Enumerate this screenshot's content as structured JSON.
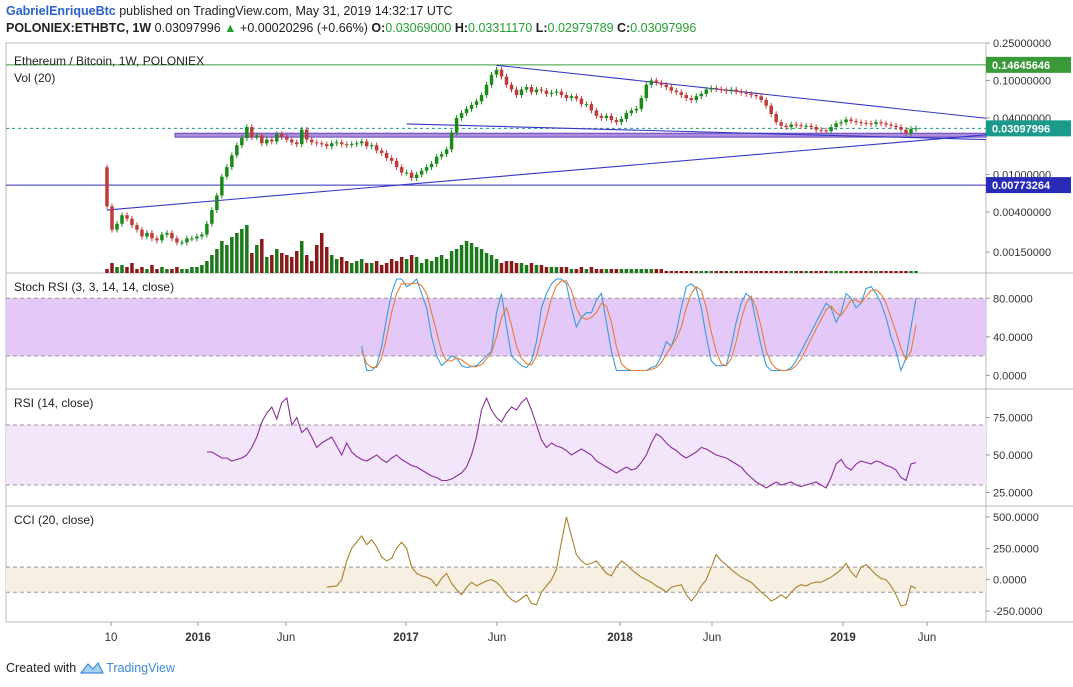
{
  "header": {
    "author": "GabrielEnriqueBtc",
    "published": " published on TradingView.com, May 31, 2019 14:32:17 UTC",
    "symbol": "POLONIEX:ETHBTC, 1W",
    "price": "0.03097996",
    "change": "+0.00020296 (+0.66%)",
    "o_label": "O:",
    "o_value": "0.03069000",
    "h_label": "H:",
    "h_value": "0.03311170",
    "l_label": "L:",
    "l_value": "0.02979789",
    "c_label": "C:",
    "c_value": "0.03097996"
  },
  "footer": {
    "created_with": "Created with",
    "brand": "TradingView"
  },
  "colors": {
    "up": "#1a8a1a",
    "down": "#c23b3b",
    "volume_up": "#1a7a1a",
    "volume_down": "#8a1a1a",
    "trendline": "#3535c8",
    "support_band": "#9a70d8",
    "green_line": "#3a9a3a",
    "stoch_k": "#3d9bd8",
    "stoch_d": "#e67e3a",
    "rsi": "#8a2c9a",
    "cci": "#a8822e",
    "stoch_band": "#e4c8f8",
    "rsi_band": "#f3e6fb",
    "cci_band": "#f6efe2"
  },
  "chart_data": [
    {
      "type": "candlestick",
      "title": "Ethereum / Bitcoin, 1W, POLONIEX",
      "scale": "log",
      "yaxis_ticks": [
        "0.25000000",
        "0.10000000",
        "0.04000000",
        "0.01000000",
        "0.00400000",
        "0.00150000"
      ],
      "ylim": [
        0.0009,
        0.25
      ],
      "x_ticks": [
        "10",
        "2016",
        "Jun",
        "2017",
        "Jun",
        "2018",
        "Jun",
        "2019",
        "Jun"
      ],
      "x_ticks_bold": [
        "2016",
        "2017",
        "2018",
        "2019"
      ],
      "last_price": "0.03097996",
      "markers": [
        {
          "label": "0.14645646",
          "value": 0.14645646,
          "color": "#3a9a3a"
        },
        {
          "label": "0.03097996",
          "value": 0.03097996,
          "color": "#1a9a8a"
        },
        {
          "label": "0.00773264",
          "value": 0.00773264,
          "color": "#2a2ab8"
        }
      ],
      "support_band": [
        0.025,
        0.0275
      ],
      "closes": [
        0.0046,
        0.0026,
        0.003,
        0.0037,
        0.0034,
        0.0029,
        0.0026,
        0.0022,
        0.0024,
        0.0021,
        0.002,
        0.0023,
        0.0024,
        0.0021,
        0.0019,
        0.0019,
        0.0021,
        0.0021,
        0.0022,
        0.0023,
        0.003,
        0.0042,
        0.006,
        0.0095,
        0.012,
        0.016,
        0.0205,
        0.0245,
        0.032,
        0.025,
        0.026,
        0.0215,
        0.0235,
        0.0225,
        0.027,
        0.025,
        0.0235,
        0.022,
        0.021,
        0.03,
        0.0235,
        0.022,
        0.0215,
        0.021,
        0.02,
        0.0215,
        0.022,
        0.021,
        0.0208,
        0.0212,
        0.0215,
        0.0225,
        0.02,
        0.0205,
        0.018,
        0.017,
        0.015,
        0.014,
        0.012,
        0.0105,
        0.0105,
        0.0092,
        0.01,
        0.011,
        0.012,
        0.013,
        0.0155,
        0.0165,
        0.0185,
        0.028,
        0.04,
        0.045,
        0.05,
        0.055,
        0.06,
        0.07,
        0.09,
        0.115,
        0.13,
        0.11,
        0.09,
        0.08,
        0.07,
        0.08,
        0.085,
        0.075,
        0.08,
        0.078,
        0.072,
        0.074,
        0.076,
        0.07,
        0.065,
        0.068,
        0.064,
        0.056,
        0.056,
        0.048,
        0.042,
        0.04,
        0.042,
        0.038,
        0.036,
        0.039,
        0.045,
        0.048,
        0.05,
        0.065,
        0.09,
        0.1,
        0.095,
        0.09,
        0.085,
        0.078,
        0.075,
        0.07,
        0.065,
        0.062,
        0.068,
        0.072,
        0.08,
        0.083,
        0.081,
        0.079,
        0.077,
        0.08,
        0.076,
        0.074,
        0.072,
        0.07,
        0.068,
        0.062,
        0.054,
        0.044,
        0.036,
        0.033,
        0.032,
        0.034,
        0.0335,
        0.033,
        0.033,
        0.032,
        0.03,
        0.0295,
        0.029,
        0.032,
        0.035,
        0.036,
        0.0385,
        0.037,
        0.036,
        0.0355,
        0.035,
        0.0345,
        0.036,
        0.035,
        0.034,
        0.033,
        0.032,
        0.03,
        0.0275,
        0.0306,
        0.031
      ]
    },
    {
      "type": "bar",
      "title": "Vol (20)",
      "values": [
        2,
        5,
        3,
        4,
        3,
        5,
        2,
        3,
        2,
        4,
        2,
        3,
        2,
        2,
        3,
        2,
        2,
        3,
        3,
        4,
        6,
        9,
        12,
        16,
        14,
        18,
        20,
        22,
        24,
        10,
        14,
        17,
        8,
        9,
        12,
        10,
        9,
        8,
        11,
        16,
        9,
        6,
        14,
        20,
        13,
        9,
        7,
        8,
        6,
        5,
        6,
        7,
        5,
        5,
        6,
        4,
        5,
        7,
        6,
        8,
        7,
        9,
        8,
        5,
        7,
        6,
        8,
        9,
        7,
        11,
        12,
        14,
        16,
        15,
        13,
        12,
        10,
        9,
        7,
        5,
        6,
        6,
        5,
        5,
        4,
        5,
        4,
        4,
        3,
        3,
        3,
        3,
        3,
        2,
        2,
        3,
        2,
        3,
        2,
        2,
        2,
        2,
        2,
        2,
        2,
        2,
        2,
        2,
        2,
        2,
        2,
        2,
        1,
        1,
        1,
        1,
        1,
        1,
        1,
        1,
        1,
        1,
        1,
        1,
        1,
        1,
        1,
        1,
        1,
        1,
        1,
        1,
        1,
        1,
        1,
        1,
        1,
        1,
        1,
        1,
        1,
        1,
        1,
        1,
        1,
        1,
        1,
        1,
        1,
        1,
        1,
        1,
        1,
        1,
        1,
        1,
        1,
        1,
        1,
        1,
        1,
        1,
        1
      ]
    },
    {
      "type": "line",
      "title": "Stoch RSI (3, 3, 14, 14, close)",
      "yaxis_ticks": [
        "80.0000",
        "40.0000",
        "0.0000"
      ],
      "ylim": [
        -8,
        100
      ],
      "band": [
        20,
        80
      ],
      "series": [
        {
          "name": "K",
          "values": [
            30,
            5,
            5,
            10,
            30,
            60,
            85,
            100,
            100,
            92,
            95,
            100,
            85,
            70,
            40,
            20,
            10,
            15,
            20,
            18,
            10,
            8,
            9,
            10,
            15,
            20,
            25,
            65,
            85,
            50,
            20,
            15,
            10,
            8,
            15,
            35,
            70,
            85,
            95,
            100,
            100,
            95,
            70,
            50,
            60,
            65,
            65,
            78,
            85,
            55,
            25,
            5,
            5,
            5,
            5,
            5,
            5,
            5,
            8,
            10,
            20,
            35,
            30,
            45,
            70,
            92,
            95,
            90,
            70,
            40,
            15,
            10,
            10,
            10,
            30,
            55,
            75,
            85,
            80,
            55,
            30,
            10,
            5,
            5,
            5,
            5,
            8,
            15,
            25,
            35,
            45,
            55,
            65,
            75,
            70,
            55,
            65,
            85,
            80,
            70,
            75,
            90,
            92,
            85,
            75,
            60,
            40,
            25,
            5,
            18,
            50,
            80
          ]
        },
        {
          "name": "D",
          "values": [
            25,
            12,
            8,
            8,
            18,
            40,
            65,
            85,
            95,
            95,
            95,
            96,
            93,
            85,
            65,
            45,
            25,
            15,
            15,
            18,
            16,
            12,
            9,
            9,
            11,
            17,
            23,
            40,
            60,
            70,
            52,
            30,
            18,
            12,
            11,
            20,
            40,
            60,
            80,
            93,
            98,
            98,
            88,
            70,
            60,
            58,
            60,
            65,
            75,
            72,
            55,
            30,
            12,
            7,
            5,
            5,
            5,
            5,
            6,
            8,
            13,
            22,
            30,
            38,
            50,
            70,
            85,
            92,
            88,
            70,
            45,
            25,
            12,
            10,
            17,
            35,
            58,
            75,
            82,
            70,
            50,
            25,
            13,
            7,
            5,
            5,
            6,
            10,
            17,
            27,
            38,
            48,
            58,
            68,
            72,
            65,
            62,
            70,
            78,
            78,
            75,
            82,
            88,
            89,
            84,
            75,
            60,
            45,
            28,
            16,
            25,
            52
          ]
        }
      ]
    },
    {
      "type": "line",
      "title": "RSI (14, close)",
      "yaxis_ticks": [
        "75.0000",
        "50.0000",
        "25.0000"
      ],
      "ylim": [
        20,
        90
      ],
      "band": [
        30,
        70
      ],
      "series": [
        {
          "name": "RSI",
          "values": [
            52,
            52,
            50,
            48,
            48,
            46,
            47,
            48,
            50,
            55,
            62,
            72,
            78,
            82,
            74,
            85,
            88,
            70,
            75,
            65,
            68,
            62,
            55,
            58,
            60,
            62,
            56,
            50,
            58,
            52,
            49,
            47,
            46,
            48,
            50,
            47,
            45,
            48,
            50,
            47,
            45,
            43,
            42,
            40,
            38,
            36,
            35,
            33,
            33,
            34,
            36,
            38,
            42,
            50,
            62,
            80,
            88,
            80,
            75,
            72,
            78,
            82,
            80,
            85,
            88,
            80,
            70,
            60,
            55,
            58,
            56,
            55,
            53,
            50,
            52,
            54,
            52,
            50,
            46,
            44,
            42,
            40,
            38,
            40,
            42,
            40,
            41,
            45,
            50,
            58,
            64,
            62,
            58,
            55,
            53,
            50,
            48,
            50,
            52,
            55,
            54,
            52,
            50,
            49,
            48,
            46,
            44,
            42,
            38,
            35,
            32,
            30,
            28,
            30,
            32,
            30,
            31,
            32,
            30,
            29,
            30,
            31,
            32,
            30,
            28,
            35,
            44,
            47,
            42,
            40,
            44,
            46,
            45,
            44,
            46,
            45,
            43,
            42,
            40,
            35,
            33,
            44,
            45
          ]
        }
      ]
    },
    {
      "type": "line",
      "title": "CCI (20, close)",
      "yaxis_ticks": [
        "500.0000",
        "250.0000",
        "0.0000",
        "-250.0000"
      ],
      "ylim": [
        -290,
        540
      ],
      "band": [
        -100,
        100
      ],
      "series": [
        {
          "name": "CCI",
          "values": [
            -60,
            -55,
            -50,
            0,
            150,
            250,
            300,
            350,
            280,
            320,
            260,
            180,
            150,
            170,
            250,
            300,
            250,
            100,
            50,
            30,
            20,
            0,
            -50,
            10,
            50,
            -30,
            -80,
            -120,
            -60,
            -20,
            -50,
            -30,
            -10,
            0,
            -20,
            -60,
            -120,
            -160,
            -180,
            -150,
            -120,
            -190,
            -200,
            -100,
            -50,
            0,
            80,
            300,
            500,
            350,
            200,
            150,
            120,
            130,
            150,
            100,
            50,
            30,
            100,
            150,
            120,
            80,
            50,
            20,
            0,
            -20,
            -50,
            -70,
            -100,
            -60,
            -50,
            -40,
            -120,
            -170,
            -120,
            -50,
            0,
            100,
            200,
            150,
            120,
            80,
            50,
            20,
            0,
            -20,
            -60,
            -100,
            -130,
            -170,
            -150,
            -120,
            -150,
            -100,
            -60,
            -40,
            -50,
            -30,
            -20,
            -20,
            0,
            20,
            50,
            80,
            130,
            60,
            20,
            100,
            120,
            80,
            40,
            10,
            0,
            -50,
            -120,
            -210,
            -200,
            -50,
            -70
          ]
        }
      ]
    }
  ]
}
